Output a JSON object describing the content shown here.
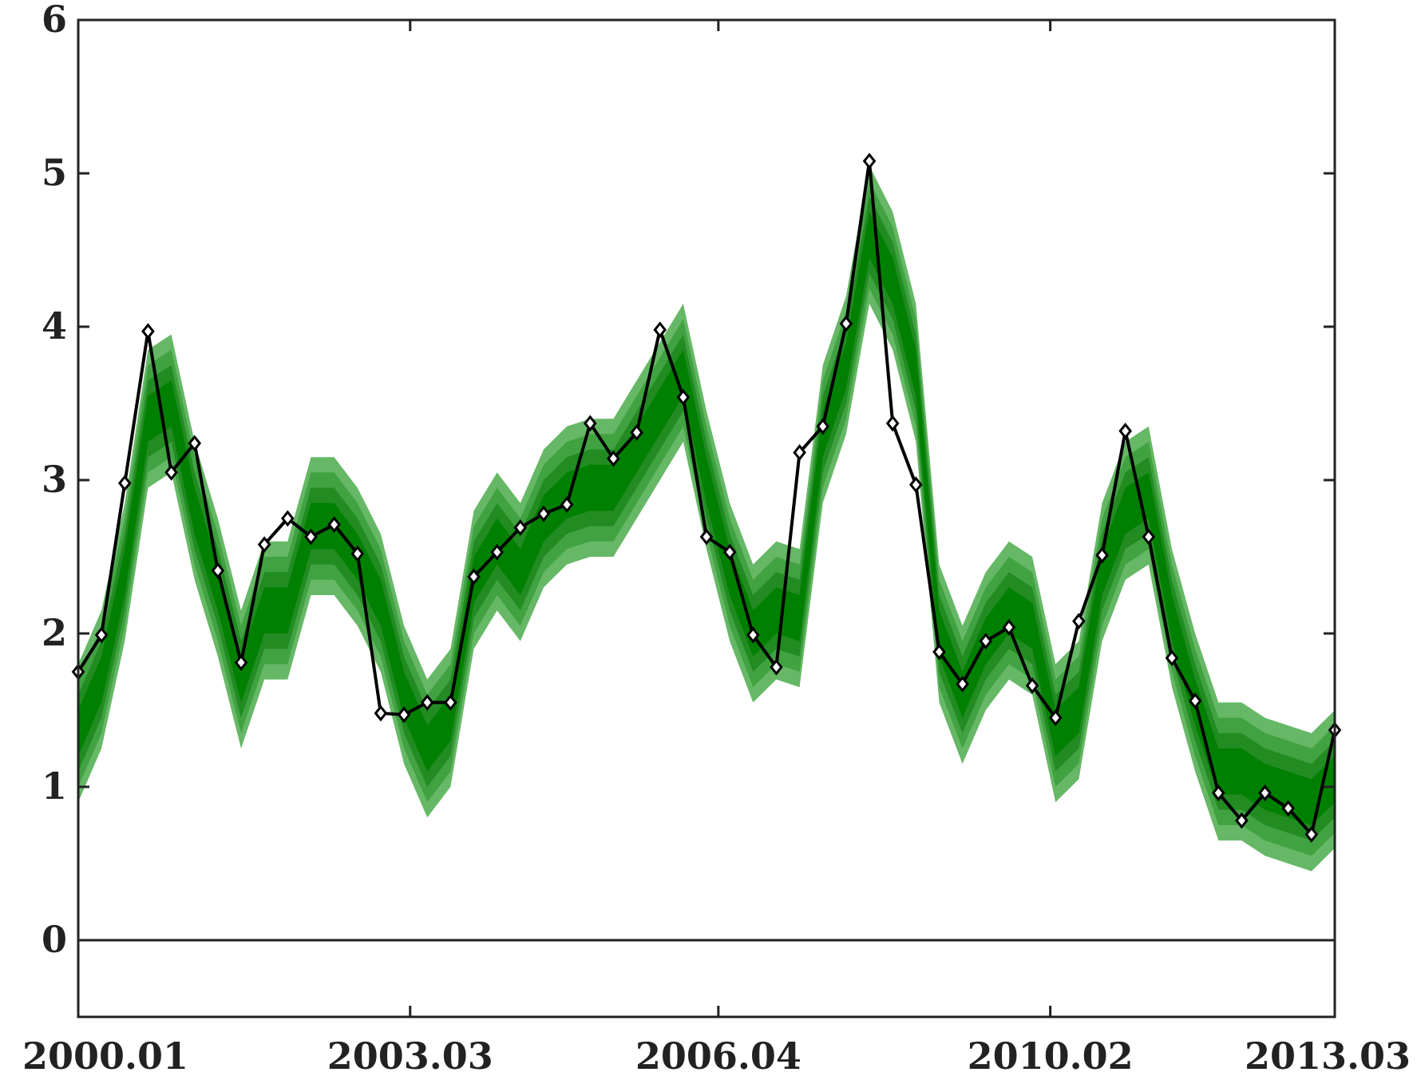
{
  "chart_data": {
    "type": "line",
    "title": "",
    "xlabel": "",
    "ylabel": "",
    "xlim": [
      1,
      54
    ],
    "ylim": [
      -0.5,
      6
    ],
    "x_ticks": [
      {
        "x": 1,
        "label": "2000.01"
      },
      {
        "x": 15,
        "label": "2003.03"
      },
      {
        "x": 28,
        "label": "2006.04"
      },
      {
        "x": 42,
        "label": "2010.02"
      },
      {
        "x": 54,
        "label": "2013.03"
      }
    ],
    "y_ticks": [
      0,
      1,
      2,
      3,
      4,
      5,
      6
    ],
    "zero_line": true,
    "series": [
      {
        "values": [
          1.75,
          1.99,
          2.98,
          3.97,
          3.05,
          3.24,
          2.41,
          1.81,
          2.58,
          2.75,
          2.63,
          2.71,
          2.52,
          1.48,
          1.47,
          1.55,
          1.55,
          2.37,
          2.53,
          2.69,
          2.78,
          2.84,
          3.37,
          3.14,
          3.31,
          3.98,
          3.54,
          2.63,
          2.53,
          1.99,
          1.78,
          3.18,
          3.35,
          4.02,
          5.08,
          3.37,
          2.97,
          1.88,
          1.67,
          1.95,
          2.04,
          1.66,
          1.45,
          2.08,
          2.51,
          3.32,
          2.63,
          1.84,
          1.56,
          0.96,
          0.78,
          0.96,
          0.86,
          0.69,
          1.37
        ],
        "color": "#000000",
        "marker": "diamond"
      }
    ],
    "band": {
      "center": [
        1.35,
        1.7,
        2.4,
        3.4,
        3.5,
        2.8,
        2.3,
        1.7,
        2.15,
        2.15,
        2.7,
        2.7,
        2.5,
        2.2,
        1.6,
        1.25,
        1.45,
        2.35,
        2.6,
        2.4,
        2.75,
        2.9,
        2.95,
        2.95,
        3.2,
        3.45,
        3.7,
        3.0,
        2.4,
        2.0,
        2.15,
        2.1,
        3.3,
        3.75,
        4.6,
        4.3,
        3.7,
        2.0,
        1.6,
        1.95,
        2.15,
        2.05,
        1.35,
        1.5,
        2.4,
        2.8,
        2.9,
        2.1,
        1.55,
        1.1,
        1.1,
        1.0,
        0.95,
        0.9,
        1.05
      ],
      "half_widths": [
        0.45,
        0.35,
        0.25,
        0.15
      ],
      "colors": [
        "#66b866",
        "#41a241",
        "#228b22",
        "#008000"
      ]
    }
  }
}
